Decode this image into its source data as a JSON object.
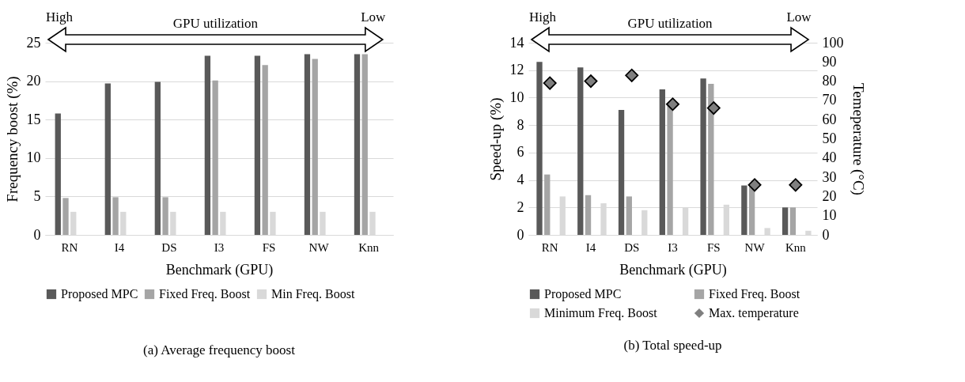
{
  "chart_data": [
    {
      "type": "bar",
      "title": "(a) Average frequency boost",
      "xlabel": "Benchmark (GPU)",
      "ylabel": "Frequency boost (%)",
      "categories": [
        "RN",
        "I4",
        "DS",
        "I3",
        "FS",
        "NW",
        "Knn"
      ],
      "series": [
        {
          "name": "Proposed MPC",
          "color": "#595959",
          "values": [
            15.8,
            19.7,
            19.9,
            23.3,
            23.3,
            23.5,
            23.5
          ]
        },
        {
          "name": "Fixed Freq. Boost",
          "color": "#a5a5a5",
          "values": [
            4.8,
            4.9,
            4.9,
            20.1,
            22.1,
            22.9,
            23.5
          ]
        },
        {
          "name": "Min Freq. Boost",
          "color": "#d9d9d9",
          "values": [
            3,
            3,
            3,
            3,
            3,
            3,
            3
          ]
        }
      ],
      "ylim": [
        0,
        25
      ],
      "yticks": [
        0,
        5,
        10,
        15,
        20,
        25
      ],
      "grid": "y",
      "legend": "bottom",
      "annotations": [
        "High",
        "GPU utilization",
        "Low"
      ]
    },
    {
      "type": "bar",
      "title": "(b) Total speed-up",
      "xlabel": "Benchmark (GPU)",
      "ylabel": "Speed-up (%)",
      "y2label": "Temeperature (°C)",
      "categories": [
        "RN",
        "I4",
        "DS",
        "I3",
        "FS",
        "NW",
        "Knn"
      ],
      "series": [
        {
          "name": "Proposed MPC",
          "color": "#595959",
          "values": [
            12.6,
            12.2,
            9.1,
            10.6,
            11.4,
            3.6,
            2.0
          ]
        },
        {
          "name": "Fixed Freq. Boost",
          "color": "#a5a5a5",
          "values": [
            4.4,
            2.9,
            2.8,
            9.4,
            11.0,
            3.6,
            2.0
          ]
        },
        {
          "name": "Minimum Freq. Boost",
          "color": "#d9d9d9",
          "values": [
            2.8,
            2.3,
            1.8,
            2.0,
            2.2,
            0.5,
            0.3
          ]
        },
        {
          "name": "Max. temperature",
          "color": "#7f7f7f",
          "type": "scatter",
          "axis": "y2",
          "values": [
            79,
            80,
            83,
            68,
            66,
            26,
            26
          ]
        }
      ],
      "marker": "diamond",
      "ylim": [
        0,
        14
      ],
      "yticks": [
        0,
        2,
        4,
        6,
        8,
        10,
        12,
        14
      ],
      "y2lim": [
        0,
        100
      ],
      "y2ticks": [
        0,
        10,
        20,
        30,
        40,
        50,
        60,
        70,
        80,
        90,
        100
      ],
      "grid": "y",
      "legend": "bottom",
      "annotations": [
        "High",
        "GPU utilization",
        "Low"
      ]
    }
  ]
}
